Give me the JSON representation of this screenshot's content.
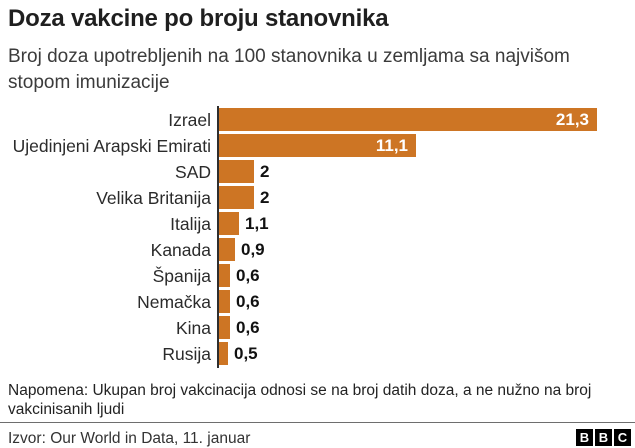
{
  "header": {
    "title": "Doza vakcine po broju stanovnika",
    "subtitle": "Broj doza upotrebljenih na 100 stanovnika u zemljama sa najvišom stopom imunizacije"
  },
  "chart_data": {
    "type": "bar",
    "orientation": "horizontal",
    "title": "Doza vakcine po broju stanovnika",
    "subtitle": "Broj doza upotrebljenih na 100 stanovnika u zemljama sa najvišom stopom imunizacije",
    "categories": [
      "Izrael",
      "Ujedinjeni Arapski Emirati",
      "SAD",
      "Velika Britanija",
      "Italija",
      "Kanada",
      "Španija",
      "Nemačka",
      "Kina",
      "Rusija"
    ],
    "values": [
      21.3,
      11.1,
      2,
      2,
      1.1,
      0.9,
      0.6,
      0.6,
      0.6,
      0.5
    ],
    "value_labels": [
      "21,3",
      "11,1",
      "2",
      "2",
      "1,1",
      "0,9",
      "0,6",
      "0,6",
      "0,6",
      "0,5"
    ],
    "xlabel": "",
    "ylabel": "",
    "xlim": [
      0,
      21.3
    ],
    "grid": false,
    "legend": false,
    "bar_color": "#cd7524",
    "axis_color": "#2e2e2e",
    "value_label_inside_color": "#ffffff",
    "value_label_outside_color": "#111111"
  },
  "footer": {
    "note": "Napomena: Ukupan broj vakcinacija odnosi se na broj datih doza, a ne nužno na broj vakcinisanih ljudi",
    "source": "Izvor: Our World in Data, 11. januar"
  },
  "logo": {
    "letters": [
      "B",
      "B",
      "C"
    ]
  }
}
